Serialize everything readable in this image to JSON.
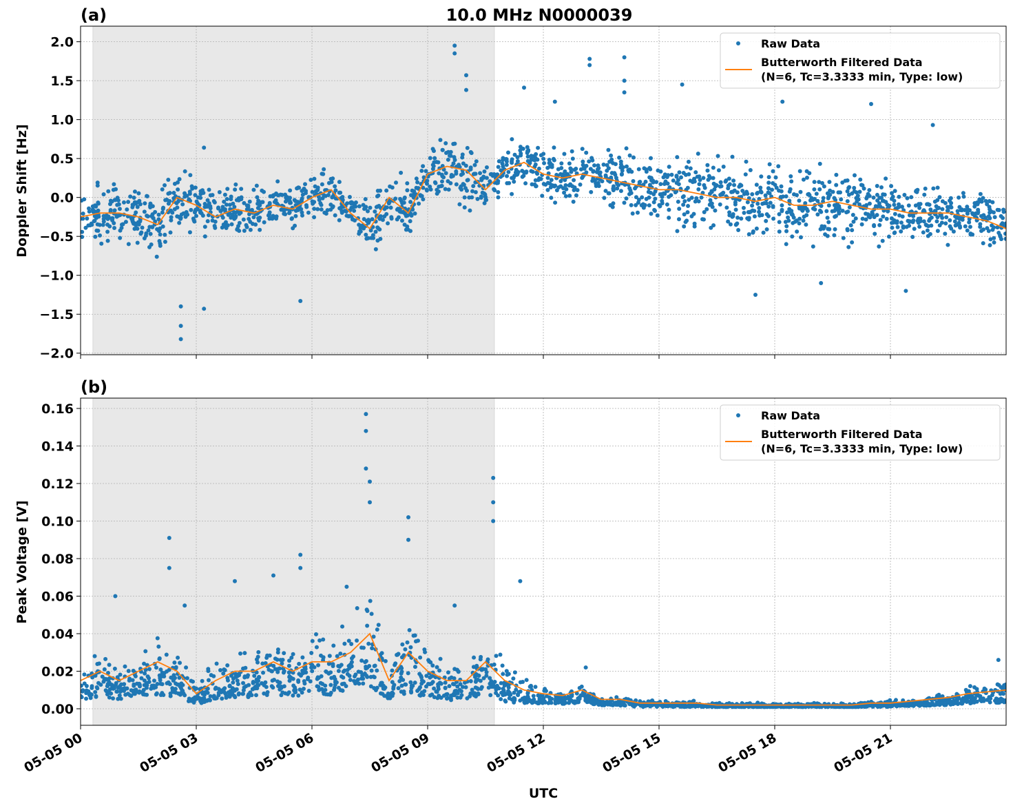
{
  "title": "10.0 MHz N0000039",
  "xlabel": "UTC",
  "x_tick_labels": [
    "05-05 00",
    "05-05 03",
    "05-05 06",
    "05-05 09",
    "05-05 12",
    "05-05 15",
    "05-05 18",
    "05-05 21"
  ],
  "colors": {
    "raw": "#1f77b4",
    "filtered": "#ff7f0e",
    "shade": "#e8e8e8",
    "grid": "#b0b0b0"
  },
  "legend": {
    "raw": "Raw Data",
    "filtered_line1": "Butterworth Filtered Data",
    "filtered_line2": "(N=6, Tc=3.3333 min, Type: low)",
    "placement": "top-right"
  },
  "chart_data": [
    {
      "type": "scatter+line",
      "panel_label": "(a)",
      "ylabel": "Doppler Shift [Hz]",
      "x_unit": "hours UTC on 05-05",
      "xlim": [
        0,
        24
      ],
      "ylim": [
        -2.02,
        2.2
      ],
      "y_ticks": [
        -2.0,
        -1.5,
        -1.0,
        -0.5,
        0.0,
        0.5,
        1.0,
        1.5,
        2.0
      ],
      "y_tick_labels": [
        "−2.0",
        "−1.5",
        "−1.0",
        "−0.5",
        "0.0",
        "0.5",
        "1.0",
        "1.5",
        "2.0"
      ],
      "grid": true,
      "shaded_interval": [
        0.32,
        10.73
      ],
      "x": [
        0,
        0.5,
        1,
        1.5,
        2,
        2.5,
        3,
        3.5,
        4,
        4.5,
        5,
        5.5,
        6,
        6.5,
        7,
        7.5,
        8,
        8.5,
        9,
        9.5,
        10,
        10.5,
        11,
        11.5,
        12,
        12.5,
        13,
        13.5,
        14,
        14.5,
        15,
        15.5,
        16,
        16.5,
        17,
        17.5,
        18,
        18.5,
        19,
        19.5,
        20,
        20.5,
        21,
        21.5,
        22,
        22.5,
        23,
        23.5,
        24
      ],
      "filtered": [
        -0.25,
        -0.2,
        -0.2,
        -0.25,
        -0.35,
        0.0,
        -0.1,
        -0.25,
        -0.15,
        -0.2,
        -0.1,
        -0.15,
        0.0,
        0.1,
        -0.2,
        -0.4,
        0.0,
        -0.2,
        0.3,
        0.4,
        0.35,
        0.1,
        0.35,
        0.45,
        0.3,
        0.25,
        0.3,
        0.25,
        0.2,
        0.15,
        0.1,
        0.1,
        0.05,
        0.0,
        0.0,
        -0.05,
        0.0,
        -0.1,
        -0.1,
        -0.05,
        -0.1,
        -0.15,
        -0.15,
        -0.2,
        -0.2,
        -0.2,
        -0.25,
        -0.3,
        -0.4
      ],
      "raw_spread": [
        0.35,
        0.35,
        0.35,
        0.35,
        0.4,
        0.35,
        0.35,
        0.3,
        0.3,
        0.3,
        0.3,
        0.3,
        0.3,
        0.3,
        0.3,
        0.4,
        0.4,
        0.35,
        0.3,
        0.4,
        0.45,
        0.3,
        0.3,
        0.35,
        0.35,
        0.35,
        0.35,
        0.35,
        0.4,
        0.4,
        0.4,
        0.45,
        0.5,
        0.5,
        0.5,
        0.5,
        0.55,
        0.55,
        0.55,
        0.5,
        0.5,
        0.45,
        0.45,
        0.4,
        0.35,
        0.35,
        0.35,
        0.35,
        0.3
      ],
      "raw_outliers": [
        [
          2.6,
          -1.82
        ],
        [
          2.6,
          -1.65
        ],
        [
          2.6,
          -1.4
        ],
        [
          3.2,
          0.64
        ],
        [
          3.2,
          -1.43
        ],
        [
          5.7,
          -1.33
        ],
        [
          9.7,
          1.95
        ],
        [
          9.7,
          1.85
        ],
        [
          10.0,
          1.57
        ],
        [
          10.0,
          1.38
        ],
        [
          11.5,
          1.41
        ],
        [
          12.3,
          1.23
        ],
        [
          13.2,
          1.78
        ],
        [
          13.2,
          1.7
        ],
        [
          14.1,
          1.8
        ],
        [
          14.1,
          1.5
        ],
        [
          14.1,
          1.35
        ],
        [
          15.6,
          1.45
        ],
        [
          17.5,
          -1.25
        ],
        [
          18.2,
          1.23
        ],
        [
          19.2,
          -1.1
        ],
        [
          20.5,
          1.2
        ],
        [
          21.4,
          -1.2
        ],
        [
          22.1,
          0.93
        ]
      ]
    },
    {
      "type": "scatter+line",
      "panel_label": "(b)",
      "ylabel": "Peak Voltage [V]",
      "x_unit": "hours UTC on 05-05",
      "xlim": [
        0,
        24
      ],
      "ylim": [
        -0.0088,
        0.1655
      ],
      "y_ticks": [
        0.0,
        0.02,
        0.04,
        0.06,
        0.08,
        0.1,
        0.12,
        0.14,
        0.16
      ],
      "y_tick_labels": [
        "0.00",
        "0.02",
        "0.04",
        "0.06",
        "0.08",
        "0.10",
        "0.12",
        "0.14",
        "0.16"
      ],
      "grid": true,
      "shaded_interval": [
        0.32,
        10.73
      ],
      "x": [
        0,
        0.5,
        1,
        1.5,
        2,
        2.5,
        3,
        3.5,
        4,
        4.5,
        5,
        5.5,
        6,
        6.5,
        7,
        7.5,
        8,
        8.5,
        9,
        9.5,
        10,
        10.5,
        11,
        11.5,
        12,
        12.5,
        13,
        13.5,
        14,
        14.5,
        15,
        15.5,
        16,
        16.5,
        17,
        17.5,
        18,
        18.5,
        19,
        19.5,
        20,
        20.5,
        21,
        21.5,
        22,
        22.5,
        23,
        23.5,
        24
      ],
      "filtered": [
        0.015,
        0.02,
        0.015,
        0.02,
        0.025,
        0.02,
        0.008,
        0.015,
        0.02,
        0.02,
        0.025,
        0.02,
        0.025,
        0.025,
        0.03,
        0.04,
        0.015,
        0.03,
        0.02,
        0.015,
        0.015,
        0.025,
        0.015,
        0.01,
        0.008,
        0.007,
        0.01,
        0.005,
        0.005,
        0.003,
        0.003,
        0.003,
        0.003,
        0.002,
        0.002,
        0.002,
        0.002,
        0.002,
        0.002,
        0.002,
        0.002,
        0.003,
        0.003,
        0.004,
        0.005,
        0.006,
        0.008,
        0.009,
        0.01
      ],
      "raw_spread": [
        0.012,
        0.02,
        0.012,
        0.015,
        0.025,
        0.02,
        0.008,
        0.015,
        0.02,
        0.02,
        0.025,
        0.02,
        0.025,
        0.025,
        0.03,
        0.04,
        0.015,
        0.035,
        0.02,
        0.015,
        0.012,
        0.025,
        0.02,
        0.01,
        0.006,
        0.006,
        0.008,
        0.004,
        0.004,
        0.003,
        0.003,
        0.003,
        0.002,
        0.002,
        0.002,
        0.002,
        0.002,
        0.002,
        0.002,
        0.002,
        0.002,
        0.002,
        0.003,
        0.003,
        0.004,
        0.005,
        0.006,
        0.007,
        0.01
      ],
      "raw_outliers": [
        [
          0.9,
          0.06
        ],
        [
          2.3,
          0.091
        ],
        [
          2.3,
          0.075
        ],
        [
          2.7,
          0.055
        ],
        [
          4.0,
          0.068
        ],
        [
          5.0,
          0.071
        ],
        [
          5.7,
          0.082
        ],
        [
          5.7,
          0.075
        ],
        [
          6.9,
          0.065
        ],
        [
          7.4,
          0.157
        ],
        [
          7.4,
          0.148
        ],
        [
          7.4,
          0.128
        ],
        [
          7.5,
          0.121
        ],
        [
          7.5,
          0.11
        ],
        [
          8.5,
          0.102
        ],
        [
          8.5,
          0.09
        ],
        [
          9.7,
          0.055
        ],
        [
          10.7,
          0.123
        ],
        [
          10.7,
          0.11
        ],
        [
          10.7,
          0.1
        ],
        [
          11.4,
          0.068
        ],
        [
          13.1,
          0.022
        ],
        [
          23.8,
          0.026
        ]
      ]
    }
  ]
}
